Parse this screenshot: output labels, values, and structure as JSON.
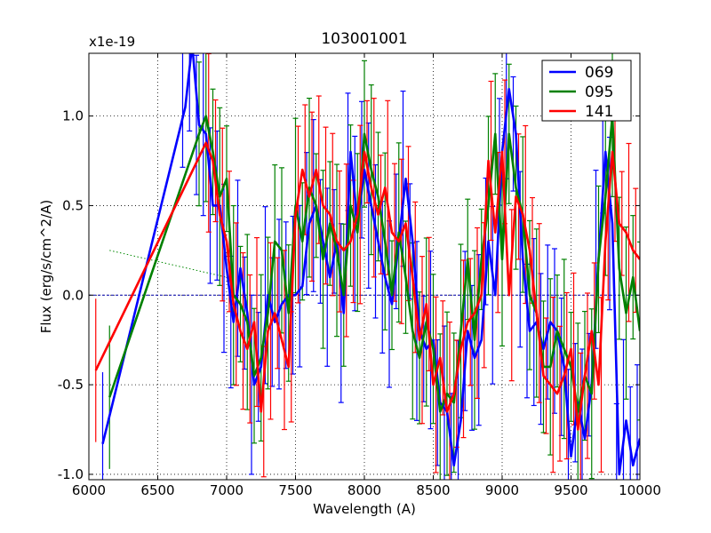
{
  "chart_data": {
    "type": "line",
    "title": "103001001",
    "xlabel": "Wavelength (A)",
    "ylabel": "Flux (erg/s/cm^2/A)",
    "offset_label": "x1e-19",
    "xlim": [
      6000,
      10000
    ],
    "ylim": [
      -1.03,
      1.35
    ],
    "grid": true,
    "legend_position": "top-right",
    "x_ticks": [
      6000,
      6500,
      7000,
      7500,
      8000,
      8500,
      9000,
      9500,
      10000
    ],
    "x_tick_labels": [
      "6000",
      "6500",
      "7000",
      "7500",
      "8000",
      "8500",
      "9000",
      "9500",
      "10000"
    ],
    "y_ticks": [
      -1.0,
      -0.5,
      0.0,
      0.5,
      1.0
    ],
    "y_tick_labels": [
      "-1.0",
      "-0.5",
      "0.0",
      "0.5",
      "1.0"
    ],
    "reference_lines": [
      {
        "name": "zero-line",
        "x": [
          6000,
          10000
        ],
        "y": [
          0.0,
          0.0
        ],
        "color": "#0000aa",
        "style": "dashed"
      },
      {
        "name": "dotted-fit-line",
        "x": [
          6150,
          7000
        ],
        "y": [
          0.25,
          0.1
        ],
        "color": "#008800",
        "style": "dotted"
      }
    ],
    "series": [
      {
        "name": "069",
        "color": "#0000ff",
        "x": [
          6100,
          6700,
          6750,
          6800,
          6850,
          6900,
          6950,
          7000,
          7050,
          7100,
          7150,
          7200,
          7250,
          7300,
          7350,
          7400,
          7450,
          7500,
          7550,
          7600,
          7650,
          7700,
          7750,
          7800,
          7850,
          7900,
          7950,
          8000,
          8050,
          8100,
          8150,
          8200,
          8250,
          8300,
          8350,
          8400,
          8450,
          8500,
          8550,
          8600,
          8650,
          8700,
          8750,
          8800,
          8850,
          8900,
          8950,
          9000,
          9050,
          9100,
          9150,
          9200,
          9250,
          9300,
          9350,
          9400,
          9450,
          9500,
          9550,
          9600,
          9650,
          9700,
          9750,
          9800,
          9850,
          9900,
          9950,
          10000
        ],
        "y": [
          -0.83,
          1.05,
          1.4,
          0.95,
          0.9,
          0.5,
          0.5,
          0.15,
          -0.15,
          0.15,
          -0.1,
          -0.5,
          -0.4,
          0.0,
          -0.15,
          -0.05,
          0.0,
          0.0,
          0.05,
          0.4,
          0.5,
          0.3,
          0.1,
          0.3,
          -0.1,
          0.8,
          0.4,
          0.7,
          0.5,
          0.3,
          0.1,
          -0.05,
          0.3,
          0.65,
          0.3,
          -0.2,
          -0.3,
          -0.25,
          -0.6,
          -0.65,
          -0.95,
          -0.7,
          -0.2,
          -0.35,
          -0.25,
          0.3,
          0.0,
          0.8,
          1.15,
          0.9,
          0.2,
          -0.2,
          -0.15,
          -0.3,
          -0.15,
          -0.2,
          -0.4,
          -0.9,
          -0.6,
          -0.8,
          -0.5,
          0.2,
          0.8,
          0.4,
          -1.0,
          -0.7,
          -0.95,
          -0.8
        ]
      },
      {
        "name": "095",
        "color": "#008000",
        "x": [
          6150,
          6800,
          6850,
          6900,
          6950,
          7000,
          7050,
          7100,
          7150,
          7200,
          7250,
          7300,
          7350,
          7400,
          7450,
          7500,
          7550,
          7600,
          7650,
          7700,
          7750,
          7800,
          7850,
          7900,
          7950,
          8000,
          8050,
          8100,
          8150,
          8200,
          8250,
          8300,
          8350,
          8400,
          8450,
          8500,
          8550,
          8600,
          8650,
          8700,
          8750,
          8800,
          8850,
          8900,
          8950,
          9000,
          9050,
          9100,
          9150,
          9200,
          9250,
          9300,
          9350,
          9400,
          9450,
          9500,
          9550,
          9600,
          9650,
          9700,
          9750,
          9800,
          9850,
          9900,
          9950,
          10000
        ],
        "y": [
          -0.57,
          0.9,
          1.0,
          0.8,
          0.55,
          0.65,
          0.0,
          -0.05,
          -0.15,
          -0.45,
          -0.35,
          -0.1,
          0.3,
          0.25,
          -0.1,
          0.5,
          0.3,
          0.6,
          0.5,
          0.2,
          0.4,
          0.25,
          0.0,
          0.5,
          0.35,
          0.9,
          0.7,
          0.55,
          0.3,
          0.0,
          0.35,
          0.1,
          -0.2,
          -0.35,
          -0.15,
          -0.3,
          -0.65,
          -0.55,
          -0.6,
          -0.2,
          0.2,
          -0.25,
          0.2,
          0.5,
          0.9,
          0.2,
          0.9,
          0.6,
          0.45,
          0.0,
          -0.1,
          -0.4,
          -0.4,
          -0.2,
          -0.3,
          -0.4,
          -0.65,
          -0.45,
          -0.55,
          0.2,
          0.55,
          1.0,
          0.15,
          -0.1,
          0.1,
          -0.2
        ]
      },
      {
        "name": "141",
        "color": "#ff0000",
        "x": [
          6050,
          6850,
          6900,
          6950,
          7000,
          7050,
          7100,
          7150,
          7200,
          7250,
          7300,
          7350,
          7400,
          7450,
          7500,
          7550,
          7600,
          7650,
          7700,
          7750,
          7800,
          7850,
          7900,
          7950,
          8000,
          8050,
          8100,
          8150,
          8200,
          8250,
          8300,
          8350,
          8400,
          8450,
          8500,
          8550,
          8600,
          8650,
          8700,
          8750,
          8800,
          8850,
          8900,
          8950,
          9000,
          9050,
          9100,
          9150,
          9200,
          9250,
          9300,
          9350,
          9400,
          9450,
          9500,
          9550,
          9600,
          9650,
          9700,
          9750,
          9800,
          9850,
          9900,
          9950,
          10000
        ],
        "y": [
          -0.42,
          0.85,
          0.75,
          0.45,
          0.3,
          -0.05,
          -0.2,
          -0.3,
          -0.15,
          -0.65,
          -0.2,
          -0.1,
          -0.25,
          -0.4,
          0.45,
          0.7,
          0.55,
          0.7,
          0.5,
          0.45,
          0.3,
          0.25,
          0.3,
          0.45,
          0.8,
          0.6,
          0.45,
          0.6,
          0.35,
          0.3,
          0.4,
          0.1,
          -0.25,
          -0.05,
          -0.5,
          -0.35,
          -0.65,
          -0.55,
          -0.3,
          -0.15,
          -0.1,
          0.0,
          0.75,
          0.35,
          0.8,
          0.0,
          0.55,
          0.45,
          0.25,
          -0.1,
          -0.45,
          -0.5,
          -0.55,
          -0.45,
          -0.3,
          -0.75,
          -0.45,
          -0.2,
          -0.5,
          0.3,
          0.8,
          0.4,
          0.35,
          0.25,
          0.2
        ]
      }
    ]
  }
}
